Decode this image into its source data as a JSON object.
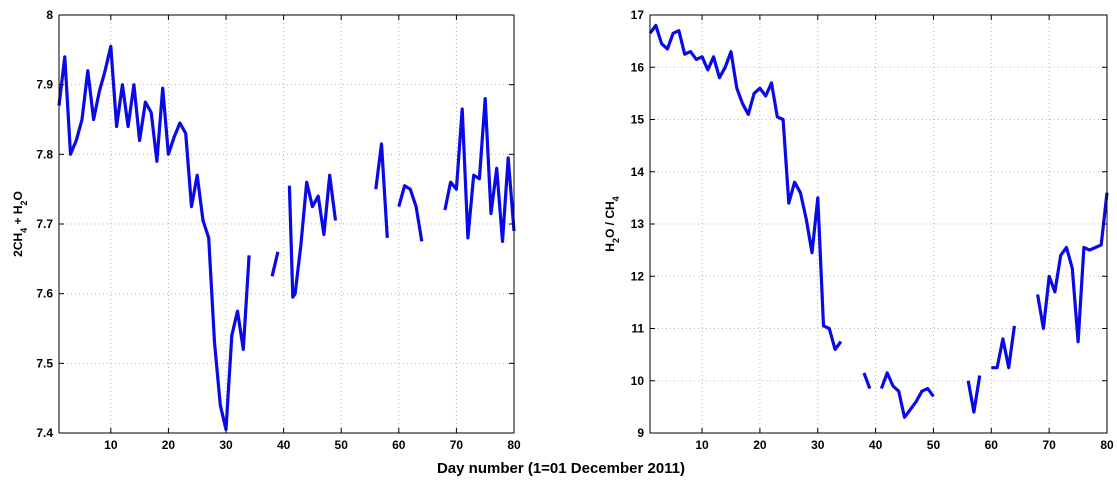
{
  "figure": {
    "xlabel": "Day number (1=01 December 2011)"
  },
  "style": {
    "line_color": "#0a0ae6",
    "grid_color": "#b4b4b4",
    "axis_color": "#000000",
    "background": "#ffffff"
  },
  "chart_data": [
    {
      "type": "line",
      "title": "",
      "xlabel": "",
      "ylabel_parts": [
        {
          "text": "2CH",
          "sub": false
        },
        {
          "text": "4",
          "sub": true
        },
        {
          "text": " + H",
          "sub": false
        },
        {
          "text": "2",
          "sub": true
        },
        {
          "text": "O",
          "sub": false
        }
      ],
      "xlim": [
        1,
        80
      ],
      "ylim": [
        7.4,
        8.0
      ],
      "xticks": [
        10,
        20,
        30,
        40,
        50,
        60,
        70,
        80
      ],
      "yticks": [
        7.4,
        7.5,
        7.6,
        7.7,
        7.8,
        7.9,
        8.0
      ],
      "ytick_labels": [
        "7.4",
        "7.5",
        "7.6",
        "7.7",
        "7.8",
        "7.9",
        "8"
      ],
      "grid": true,
      "series": [
        {
          "segments": [
            [
              [
                1,
                7.87
              ],
              [
                2,
                7.94
              ],
              [
                3,
                7.8
              ],
              [
                4,
                7.82
              ],
              [
                5,
                7.85
              ],
              [
                6,
                7.92
              ],
              [
                7,
                7.85
              ],
              [
                8,
                7.89
              ],
              [
                9,
                7.92
              ],
              [
                10,
                7.955
              ],
              [
                11,
                7.84
              ],
              [
                12,
                7.9
              ],
              [
                13,
                7.84
              ],
              [
                14,
                7.9
              ],
              [
                15,
                7.82
              ],
              [
                16,
                7.875
              ],
              [
                17,
                7.86
              ],
              [
                18,
                7.79
              ],
              [
                19,
                7.895
              ],
              [
                20,
                7.8
              ],
              [
                21,
                7.825
              ],
              [
                22,
                7.845
              ],
              [
                23,
                7.83
              ],
              [
                24,
                7.725
              ],
              [
                25,
                7.77
              ],
              [
                26,
                7.705
              ],
              [
                27,
                7.68
              ],
              [
                28,
                7.53
              ],
              [
                29,
                7.44
              ],
              [
                30,
                7.405
              ],
              [
                31,
                7.54
              ],
              [
                32,
                7.575
              ],
              [
                33,
                7.52
              ],
              [
                34,
                7.655
              ]
            ],
            [
              [
                38,
                7.625
              ],
              [
                39,
                7.66
              ]
            ],
            [
              [
                41,
                7.755
              ],
              [
                41.6,
                7.595
              ],
              [
                42,
                7.6
              ],
              [
                43,
                7.67
              ],
              [
                44,
                7.76
              ],
              [
                45,
                7.725
              ],
              [
                46,
                7.74
              ],
              [
                47,
                7.685
              ],
              [
                48,
                7.77
              ],
              [
                49,
                7.705
              ]
            ],
            [
              [
                56,
                7.75
              ],
              [
                57,
                7.815
              ],
              [
                58,
                7.68
              ]
            ],
            [
              [
                60,
                7.725
              ],
              [
                61,
                7.755
              ],
              [
                62,
                7.75
              ],
              [
                63,
                7.725
              ],
              [
                64,
                7.675
              ]
            ],
            [
              [
                68,
                7.72
              ],
              [
                69,
                7.76
              ],
              [
                70,
                7.75
              ],
              [
                71,
                7.865
              ],
              [
                72,
                7.68
              ],
              [
                73,
                7.77
              ],
              [
                74,
                7.765
              ],
              [
                75,
                7.88
              ],
              [
                76,
                7.715
              ],
              [
                77,
                7.78
              ],
              [
                78,
                7.675
              ],
              [
                79,
                7.795
              ],
              [
                80,
                7.69
              ]
            ]
          ]
        }
      ]
    },
    {
      "type": "line",
      "title": "",
      "xlabel": "",
      "ylabel_parts": [
        {
          "text": "H",
          "sub": false
        },
        {
          "text": "2",
          "sub": true
        },
        {
          "text": "O / CH",
          "sub": false
        },
        {
          "text": "4",
          "sub": true
        }
      ],
      "xlim": [
        1,
        80
      ],
      "ylim": [
        9,
        17
      ],
      "xticks": [
        10,
        20,
        30,
        40,
        50,
        60,
        70,
        80
      ],
      "yticks": [
        9,
        10,
        11,
        12,
        13,
        14,
        15,
        16,
        17
      ],
      "ytick_labels": [
        "9",
        "10",
        "11",
        "12",
        "13",
        "14",
        "15",
        "16",
        "17"
      ],
      "grid": true,
      "series": [
        {
          "segments": [
            [
              [
                1,
                16.65
              ],
              [
                2,
                16.8
              ],
              [
                3,
                16.45
              ],
              [
                4,
                16.35
              ],
              [
                5,
                16.65
              ],
              [
                6,
                16.7
              ],
              [
                7,
                16.25
              ],
              [
                8,
                16.3
              ],
              [
                9,
                16.15
              ],
              [
                10,
                16.2
              ],
              [
                11,
                15.95
              ],
              [
                12,
                16.2
              ],
              [
                13,
                15.8
              ],
              [
                14,
                16.0
              ],
              [
                15,
                16.3
              ],
              [
                16,
                15.6
              ],
              [
                17,
                15.3
              ],
              [
                18,
                15.1
              ],
              [
                19,
                15.5
              ],
              [
                20,
                15.6
              ],
              [
                21,
                15.45
              ],
              [
                22,
                15.7
              ],
              [
                23,
                15.05
              ],
              [
                24,
                15.0
              ],
              [
                25,
                13.4
              ],
              [
                26,
                13.8
              ],
              [
                27,
                13.6
              ],
              [
                28,
                13.1
              ],
              [
                29,
                12.45
              ],
              [
                30,
                13.5
              ],
              [
                31,
                11.05
              ],
              [
                32,
                11.0
              ],
              [
                33,
                10.6
              ],
              [
                34,
                10.75
              ]
            ],
            [
              [
                38,
                10.15
              ],
              [
                39,
                9.85
              ]
            ],
            [
              [
                41,
                9.85
              ],
              [
                42,
                10.15
              ],
              [
                43,
                9.9
              ],
              [
                44,
                9.8
              ],
              [
                45,
                9.3
              ],
              [
                46,
                9.45
              ],
              [
                47,
                9.6
              ],
              [
                48,
                9.8
              ],
              [
                49,
                9.85
              ],
              [
                50,
                9.7
              ]
            ],
            [
              [
                56,
                10.0
              ],
              [
                57,
                9.4
              ],
              [
                58,
                10.1
              ]
            ],
            [
              [
                60,
                10.25
              ],
              [
                61,
                10.25
              ],
              [
                62,
                10.8
              ],
              [
                63,
                10.25
              ],
              [
                64,
                11.05
              ]
            ],
            [
              [
                68,
                11.65
              ],
              [
                69,
                11.0
              ],
              [
                70,
                12.0
              ],
              [
                71,
                11.7
              ],
              [
                72,
                12.4
              ],
              [
                73,
                12.55
              ],
              [
                74,
                12.15
              ],
              [
                75,
                10.75
              ],
              [
                76,
                12.55
              ],
              [
                77,
                12.5
              ],
              [
                78,
                12.55
              ],
              [
                79,
                12.6
              ],
              [
                80,
                13.6
              ]
            ]
          ]
        }
      ]
    }
  ]
}
